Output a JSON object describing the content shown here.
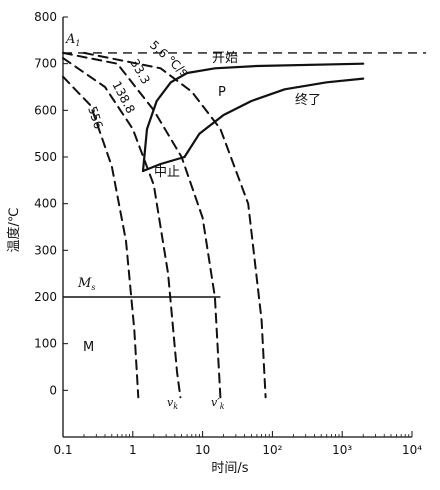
{
  "chart_data": {
    "type": "line",
    "title": "",
    "xlabel": "时间/s",
    "ylabel": "温度/℃",
    "xscale": "log",
    "xlim": [
      0.1,
      10000
    ],
    "ylim": [
      -100,
      800
    ],
    "x_ticks": [
      "0.1",
      "1",
      "10",
      "10²",
      "10³",
      "10⁴"
    ],
    "y_ticks": [
      "0",
      "100",
      "200",
      "300",
      "400",
      "500",
      "600",
      "700",
      "800"
    ],
    "grid": false,
    "A1_temperature": 723,
    "A1_label": "A",
    "A1_sub": "1",
    "Ms_temperature": 200,
    "Ms_label": "M",
    "Ms_sub": "s",
    "M_label": "M",
    "P_label": "P",
    "start_label": "开始",
    "finish_label": "终了",
    "stop_label": "中止",
    "vk_label": "v",
    "vk_sub": "k",
    "vk_prime_label": "v′",
    "vk_prime_sub": "k",
    "transformation_curves": [
      {
        "name": "start",
        "points": [
          [
            1.4,
            470
          ],
          [
            1.6,
            560
          ],
          [
            2.2,
            620
          ],
          [
            3.5,
            660
          ],
          [
            6,
            680
          ],
          [
            15,
            690
          ],
          [
            60,
            695
          ],
          [
            2000,
            700
          ]
        ]
      },
      {
        "name": "stop",
        "points": [
          [
            1.4,
            470
          ],
          [
            2.5,
            485
          ],
          [
            5.5,
            500
          ]
        ]
      },
      {
        "name": "finish",
        "points": [
          [
            5.5,
            500
          ],
          [
            9,
            550
          ],
          [
            20,
            590
          ],
          [
            50,
            620
          ],
          [
            150,
            645
          ],
          [
            600,
            660
          ],
          [
            2000,
            668
          ]
        ]
      }
    ],
    "cooling_curves": [
      {
        "label": "556",
        "points": [
          [
            0.1,
            672
          ],
          [
            0.25,
            610
          ],
          [
            0.5,
            480
          ],
          [
            0.8,
            320
          ],
          [
            1.05,
            130
          ],
          [
            1.2,
            -15
          ]
        ]
      },
      {
        "label": "138.8",
        "points": [
          [
            0.1,
            712
          ],
          [
            0.4,
            650
          ],
          [
            1.0,
            560
          ],
          [
            2.0,
            440
          ],
          [
            3.2,
            250
          ],
          [
            4.3,
            40
          ],
          [
            4.8,
            -15
          ]
        ]
      },
      {
        "label": "33.3",
        "points": [
          [
            0.1,
            723
          ],
          [
            0.6,
            700
          ],
          [
            2.0,
            600
          ],
          [
            5.0,
            500
          ],
          [
            10,
            370
          ],
          [
            15,
            200
          ],
          [
            18,
            -15
          ]
        ]
      },
      {
        "label": "5.6 ℃/s",
        "points": [
          [
            0.2,
            723
          ],
          [
            2.5,
            690
          ],
          [
            7,
            640
          ],
          [
            18,
            560
          ],
          [
            45,
            400
          ],
          [
            70,
            150
          ],
          [
            80,
            -15
          ]
        ]
      }
    ]
  }
}
